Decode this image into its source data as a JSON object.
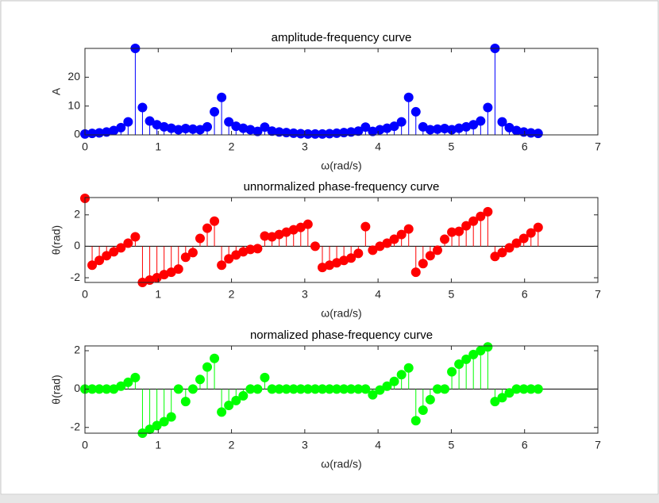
{
  "chart_data": [
    {
      "type": "stem",
      "title": "amplitude-frequency curve",
      "xlabel": "ω(rad/s)",
      "ylabel": "A",
      "color": "#0000ff",
      "x": [
        0,
        0.098,
        0.196,
        0.295,
        0.393,
        0.491,
        0.589,
        0.687,
        0.785,
        0.884,
        0.982,
        1.08,
        1.178,
        1.276,
        1.374,
        1.473,
        1.571,
        1.669,
        1.767,
        1.865,
        1.963,
        2.062,
        2.16,
        2.258,
        2.356,
        2.454,
        2.553,
        2.651,
        2.749,
        2.847,
        2.945,
        3.043,
        3.142,
        3.24,
        3.338,
        3.436,
        3.534,
        3.632,
        3.731,
        3.829,
        3.927,
        4.025,
        4.123,
        4.221,
        4.32,
        4.418,
        4.516,
        4.614,
        4.712,
        4.811,
        4.909,
        5.007,
        5.105,
        5.203,
        5.301,
        5.4,
        5.498,
        5.596,
        5.694,
        5.792,
        5.89,
        5.989,
        6.087,
        6.185
      ],
      "values": [
        0.3,
        0.5,
        0.7,
        1.0,
        1.5,
        2.5,
        4.5,
        30,
        9.5,
        4.8,
        3.5,
        2.8,
        2.3,
        1.8,
        2.2,
        2.0,
        1.8,
        2.8,
        8,
        13,
        4.5,
        3.0,
        2.3,
        1.8,
        1.2,
        2.7,
        1.3,
        1.0,
        0.8,
        0.6,
        0.4,
        0.3,
        0.3,
        0.3,
        0.4,
        0.6,
        0.8,
        1.0,
        1.3,
        2.7,
        1.2,
        1.8,
        2.3,
        3.0,
        4.5,
        13,
        8,
        2.8,
        1.8,
        2.0,
        2.2,
        1.8,
        2.3,
        2.8,
        3.5,
        4.8,
        9.5,
        30,
        4.5,
        2.5,
        1.5,
        1.0,
        0.7,
        0.5
      ],
      "xlim": [
        0,
        7
      ],
      "xticks": [
        0,
        1,
        2,
        3,
        4,
        5,
        6,
        7
      ],
      "ylim": [
        0,
        30
      ],
      "yticks": [
        0,
        10,
        20
      ]
    },
    {
      "type": "stem",
      "title": "unnormalized phase-frequency curve",
      "xlabel": "ω(rad/s)",
      "ylabel": "θ(rad)",
      "color": "#ff0000",
      "x": [
        0,
        0.098,
        0.196,
        0.295,
        0.393,
        0.491,
        0.589,
        0.687,
        0.785,
        0.884,
        0.982,
        1.08,
        1.178,
        1.276,
        1.374,
        1.473,
        1.571,
        1.669,
        1.767,
        1.865,
        1.963,
        2.062,
        2.16,
        2.258,
        2.356,
        2.454,
        2.553,
        2.651,
        2.749,
        2.847,
        2.945,
        3.043,
        3.142,
        3.24,
        3.338,
        3.436,
        3.534,
        3.632,
        3.731,
        3.829,
        3.927,
        4.025,
        4.123,
        4.221,
        4.32,
        4.418,
        4.516,
        4.614,
        4.712,
        4.811,
        4.909,
        5.007,
        5.105,
        5.203,
        5.301,
        5.4,
        5.498,
        5.596,
        5.694,
        5.792,
        5.89,
        5.989,
        6.087,
        6.185
      ],
      "values": [
        3.05,
        -1.2,
        -0.9,
        -0.6,
        -0.35,
        -0.1,
        0.2,
        0.6,
        -2.3,
        -2.15,
        -2.0,
        -1.8,
        -1.65,
        -1.45,
        -0.7,
        -0.4,
        0.5,
        1.15,
        1.6,
        -1.2,
        -0.8,
        -0.55,
        -0.35,
        -0.2,
        -0.15,
        0.65,
        0.6,
        0.75,
        0.9,
        1.05,
        1.2,
        1.4,
        0,
        -1.35,
        -1.2,
        -1.05,
        -0.9,
        -0.75,
        -0.45,
        1.25,
        -0.25,
        0.0,
        0.2,
        0.45,
        0.75,
        1.1,
        -1.65,
        -1.1,
        -0.6,
        -0.25,
        0.45,
        0.9,
        0.95,
        1.3,
        1.6,
        1.9,
        2.2,
        -0.65,
        -0.4,
        -0.1,
        0.2,
        0.5,
        0.85,
        1.2
      ],
      "xlim": [
        0,
        7
      ],
      "xticks": [
        0,
        1,
        2,
        3,
        4,
        5,
        6,
        7
      ],
      "ylim": [
        -2.3,
        3.1
      ],
      "yticks": [
        -2,
        0,
        2
      ]
    },
    {
      "type": "stem",
      "title": "normalized phase-frequency curve",
      "xlabel": "ω(rad/s)",
      "ylabel": "θ(rad)",
      "color": "#00ff00",
      "x": [
        0,
        0.098,
        0.196,
        0.295,
        0.393,
        0.491,
        0.589,
        0.687,
        0.785,
        0.884,
        0.982,
        1.08,
        1.178,
        1.276,
        1.374,
        1.473,
        1.571,
        1.669,
        1.767,
        1.865,
        1.963,
        2.062,
        2.16,
        2.258,
        2.356,
        2.454,
        2.553,
        2.651,
        2.749,
        2.847,
        2.945,
        3.043,
        3.142,
        3.24,
        3.338,
        3.436,
        3.534,
        3.632,
        3.731,
        3.829,
        3.927,
        4.025,
        4.123,
        4.221,
        4.32,
        4.418,
        4.516,
        4.614,
        4.712,
        4.811,
        4.909,
        5.007,
        5.105,
        5.203,
        5.301,
        5.4,
        5.498,
        5.596,
        5.694,
        5.792,
        5.89,
        5.989,
        6.087,
        6.185
      ],
      "values": [
        0,
        0,
        0,
        0,
        0,
        0.15,
        0.35,
        0.6,
        -2.3,
        -2.1,
        -1.9,
        -1.7,
        -1.45,
        0,
        -0.65,
        0,
        0.5,
        1.15,
        1.6,
        -1.2,
        -0.85,
        -0.6,
        -0.35,
        0,
        0,
        0.6,
        0,
        0,
        0,
        0,
        0,
        0,
        0,
        0,
        0,
        0,
        0,
        0,
        0,
        0,
        -0.3,
        -0.05,
        0.15,
        0.4,
        0.75,
        1.1,
        -1.65,
        -1.1,
        -0.55,
        0,
        0,
        0.9,
        1.3,
        1.55,
        1.8,
        2.0,
        2.2,
        -0.65,
        -0.45,
        -0.2,
        0,
        0,
        0,
        0
      ],
      "xlim": [
        0,
        7
      ],
      "xticks": [
        0,
        1,
        2,
        3,
        4,
        5,
        6,
        7
      ],
      "ylim": [
        -2.3,
        2.25
      ],
      "yticks": [
        -2,
        0,
        2
      ]
    }
  ]
}
